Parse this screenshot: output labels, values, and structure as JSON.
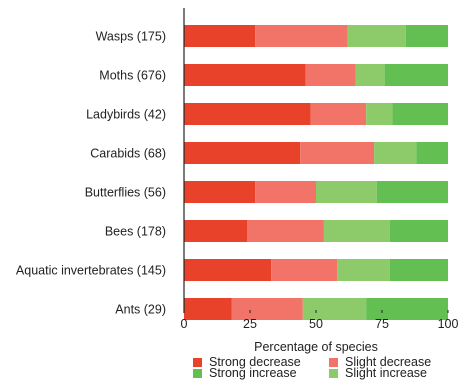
{
  "chart_data": {
    "type": "bar",
    "orientation": "horizontal",
    "stacked": "percent",
    "categories": [
      "Wasps (175)",
      "Moths (676)",
      "Ladybirds (42)",
      "Carabids (68)",
      "Butterflies (56)",
      "Bees (178)",
      "Aquatic invertebrates (145)",
      "Ants (29)"
    ],
    "series": [
      {
        "name": "Strong decrease",
        "color": "#e8432a",
        "values": [
          27,
          46,
          48,
          44,
          27,
          24,
          33,
          18
        ]
      },
      {
        "name": "Slight decrease",
        "color": "#f27368",
        "values": [
          35,
          19,
          21,
          28,
          23,
          29,
          25,
          27
        ]
      },
      {
        "name": "Slight increase",
        "color": "#8cca6a",
        "values": [
          22,
          11,
          10,
          16,
          23,
          25,
          20,
          24
        ]
      },
      {
        "name": "Strong increase",
        "color": "#63bf52",
        "values": [
          16,
          24,
          21,
          12,
          27,
          22,
          22,
          31
        ]
      }
    ],
    "xlabel": "Percentage of species",
    "ylabel": "",
    "xlim": [
      0,
      100
    ],
    "xticks": [
      0,
      25,
      50,
      75,
      100
    ],
    "grid": false,
    "legend_position": "bottom"
  },
  "legend_items": [
    {
      "name": "Strong decrease",
      "color": "#e8432a"
    },
    {
      "name": "Slight decrease",
      "color": "#f27368"
    },
    {
      "name": "Strong increase",
      "color": "#63bf52"
    },
    {
      "name": "Slight increase",
      "color": "#8cca6a"
    }
  ]
}
